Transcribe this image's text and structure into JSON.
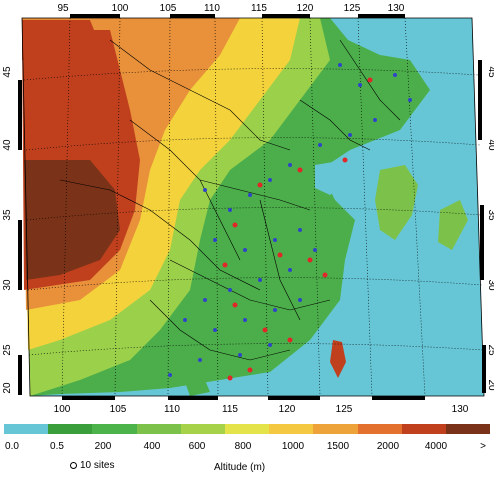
{
  "map": {
    "top_lon_ticks": [
      "95",
      "100",
      "105",
      "110",
      "115",
      "120",
      "125",
      "130"
    ],
    "bottom_lon_ticks": [
      "100",
      "105",
      "110",
      "115",
      "120",
      "125",
      "130"
    ],
    "left_lat_ticks": [
      "45",
      "40",
      "35",
      "30",
      "25",
      "20"
    ],
    "right_lat_ticks": [
      "45",
      "40",
      "35",
      "30",
      "25",
      "20"
    ],
    "colors": {
      "sea": "#66c6d6",
      "lowland": "#4cae4a",
      "hills": "#9bd04a",
      "plateau_mid": "#f3d23c",
      "plateau_high": "#e8903a",
      "mountain": "#c0401e",
      "highest": "#7a3318",
      "site_blue": "#2f45c8",
      "site_red": "#e02828"
    }
  },
  "legend": {
    "labels": [
      "0.0",
      "0.5",
      "200",
      "400",
      "600",
      "800",
      "1000",
      "1500",
      "2000",
      "4000",
      ">"
    ],
    "swatches": [
      "#66c6d6",
      "#3a9e3a",
      "#4cb24a",
      "#7cc24a",
      "#a6d24a",
      "#e4e44a",
      "#f5c842",
      "#eea23a",
      "#e4702e",
      "#c0401e",
      "#7a3318"
    ],
    "sites_label": "10 sites",
    "altitude_title": "Altitude (m)"
  }
}
